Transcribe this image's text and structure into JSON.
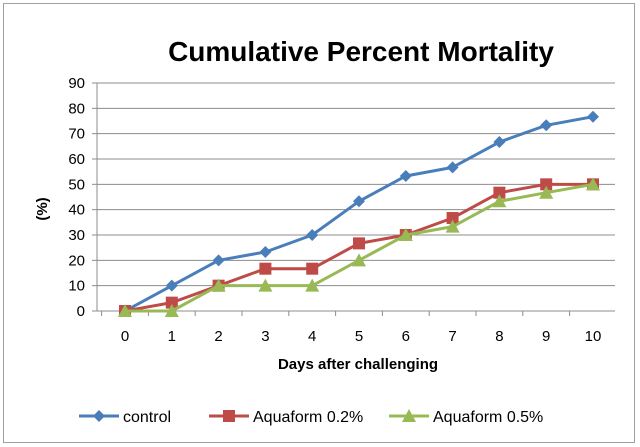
{
  "chart_data": {
    "type": "line",
    "title": "Cumulative Percent Mortality",
    "xlabel": "Days after challenging",
    "ylabel": "(%)",
    "x": [
      0,
      1,
      2,
      3,
      4,
      5,
      6,
      7,
      8,
      9,
      10
    ],
    "xlim": [
      0,
      10
    ],
    "ylim": [
      0,
      90
    ],
    "yticks": [
      0,
      10,
      20,
      30,
      40,
      50,
      60,
      70,
      80,
      90
    ],
    "grid": true,
    "legend_position": "bottom",
    "series": [
      {
        "name": "control",
        "color": "#4a7ebb",
        "marker": "diamond",
        "values": [
          0,
          10,
          20,
          23.3,
          30,
          43.3,
          53.3,
          56.7,
          66.7,
          73.3,
          76.7
        ]
      },
      {
        "name": "Aquaform 0.2%",
        "color": "#be4b48",
        "marker": "square",
        "values": [
          0,
          3.3,
          10,
          16.7,
          16.7,
          26.7,
          30,
          36.7,
          46.7,
          50,
          50
        ]
      },
      {
        "name": "Aquaform 0.5%",
        "color": "#98b954",
        "marker": "triangle",
        "values": [
          0,
          0,
          10,
          10,
          10,
          20,
          30,
          33.3,
          43.3,
          46.7,
          50
        ]
      }
    ]
  }
}
